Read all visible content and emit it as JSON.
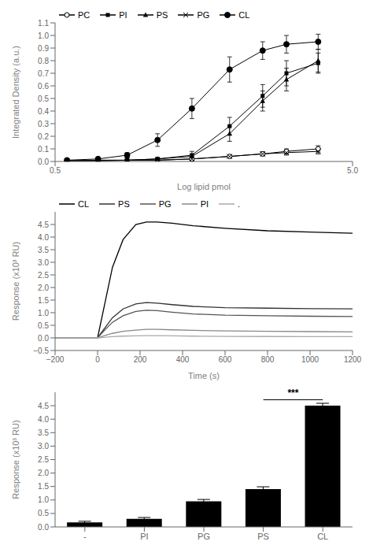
{
  "chart_data": [
    {
      "type": "line",
      "x_label": "Log lipid pmol",
      "y_label": "Integrated Density (a.u.)",
      "xlim": [
        0.5,
        5
      ],
      "xticks": [
        0.5,
        {
          "value": 5,
          "label": "5.0"
        }
      ],
      "ylim": [
        0,
        1.1
      ],
      "yticks": [
        {
          "value": 0,
          "label": "0.0"
        },
        0.1,
        0.2,
        0.3,
        0.4,
        0.5,
        0.6,
        0.7,
        0.8,
        0.9,
        {
          "value": 1,
          "label": "1.0"
        },
        1.1
      ],
      "legend": "upper left",
      "series": [
        {
          "name": "PC",
          "color": "#000000",
          "marker": "circle_open",
          "x": [
            0.68,
            1.15,
            1.59,
            2.05,
            2.57,
            3.14,
            3.64,
            4.0,
            4.48
          ],
          "values": [
            0.005,
            0.005,
            0.01,
            0.01,
            0.02,
            0.04,
            0.06,
            0.08,
            0.1
          ],
          "errors": [
            0.002,
            0.003,
            0.004,
            0.005,
            0.008,
            0.01,
            0.015,
            0.02,
            0.025
          ]
        },
        {
          "name": "PI",
          "color": "#000000",
          "marker": "square",
          "x": [
            0.68,
            1.15,
            1.59,
            2.05,
            2.57,
            3.14,
            3.64,
            4.0,
            4.48
          ],
          "values": [
            0.005,
            0.01,
            0.01,
            0.02,
            0.05,
            0.28,
            0.52,
            0.7,
            0.78
          ],
          "errors": [
            0.003,
            0.005,
            0.005,
            0.01,
            0.03,
            0.07,
            0.09,
            0.1,
            0.08
          ]
        },
        {
          "name": "PS",
          "color": "#000000",
          "marker": "triangle",
          "x": [
            0.68,
            1.15,
            1.59,
            2.05,
            2.57,
            3.14,
            3.64,
            4.0,
            4.48
          ],
          "values": [
            0.005,
            0.01,
            0.01,
            0.02,
            0.04,
            0.22,
            0.48,
            0.65,
            0.8
          ],
          "errors": [
            0.003,
            0.005,
            0.005,
            0.01,
            0.02,
            0.06,
            0.08,
            0.09,
            0.09
          ]
        },
        {
          "name": "PG",
          "color": "#000000",
          "marker": "x",
          "x": [
            0.68,
            1.15,
            1.59,
            2.05,
            2.57,
            3.14,
            3.64,
            4.0,
            4.48
          ],
          "values": [
            0.005,
            0.005,
            0.01,
            0.01,
            0.02,
            0.04,
            0.06,
            0.07,
            0.08
          ],
          "errors": [
            0.002,
            0.003,
            0.004,
            0.005,
            0.008,
            0.01,
            0.015,
            0.02,
            0.02
          ]
        },
        {
          "name": "CL",
          "color": "#000000",
          "marker": "circle",
          "x": [
            0.68,
            1.15,
            1.59,
            2.05,
            2.57,
            3.14,
            3.64,
            4.0,
            4.48
          ],
          "values": [
            0.01,
            0.02,
            0.05,
            0.17,
            0.42,
            0.73,
            0.88,
            0.93,
            0.95
          ],
          "errors": [
            0.005,
            0.01,
            0.02,
            0.05,
            0.08,
            0.1,
            0.07,
            0.07,
            0.06
          ]
        }
      ]
    },
    {
      "type": "line",
      "x_label": "Time (s)",
      "y_label": "Response (x10³ RU)",
      "x": [
        -200,
        -150,
        -100,
        -50,
        -10,
        0,
        30,
        70,
        120,
        180,
        230,
        280,
        350,
        450,
        600,
        800,
        1000,
        1200
      ],
      "xlim": [
        -200,
        1200
      ],
      "xticks": [
        {
          "value": -200,
          "label": "−200"
        },
        0,
        200,
        400,
        600,
        800,
        1000,
        1200
      ],
      "ylim": [
        -0.5,
        5.0
      ],
      "yticks": [
        {
          "value": -0.5,
          "label": "−0.5"
        },
        {
          "value": 0,
          "label": "0.0"
        },
        0.5,
        {
          "value": 1,
          "label": "1.0"
        },
        1.5,
        {
          "value": 2,
          "label": "2.0"
        },
        2.5,
        {
          "value": 3,
          "label": "3.0"
        },
        3.5,
        {
          "value": 4,
          "label": "4.0"
        },
        4.5
      ],
      "legend": "upper left",
      "series": [
        {
          "name": "CL",
          "color": "#000000",
          "values": [
            0.0,
            0.0,
            0.0,
            0.0,
            0.0,
            0.0,
            1.2,
            2.8,
            3.9,
            4.5,
            4.6,
            4.6,
            4.55,
            4.45,
            4.35,
            4.25,
            4.2,
            4.15
          ]
        },
        {
          "name": "PS",
          "color": "#333333",
          "values": [
            0.0,
            0.0,
            0.0,
            0.0,
            0.0,
            0.0,
            0.35,
            0.8,
            1.15,
            1.35,
            1.4,
            1.38,
            1.32,
            1.25,
            1.2,
            1.18,
            1.16,
            1.15
          ]
        },
        {
          "name": "PG",
          "color": "#555555",
          "values": [
            0.0,
            0.0,
            0.0,
            0.0,
            0.0,
            0.0,
            0.28,
            0.62,
            0.88,
            1.05,
            1.1,
            1.08,
            1.02,
            0.95,
            0.9,
            0.88,
            0.86,
            0.85
          ]
        },
        {
          "name": "PI",
          "color": "#888888",
          "values": [
            0.0,
            0.0,
            0.0,
            0.0,
            0.0,
            0.0,
            0.08,
            0.18,
            0.26,
            0.31,
            0.34,
            0.34,
            0.32,
            0.3,
            0.28,
            0.26,
            0.25,
            0.24
          ]
        },
        {
          "name": ".",
          "color": "#aaaaaa",
          "values": [
            0.0,
            0.0,
            0.0,
            0.0,
            0.0,
            0.0,
            0.02,
            0.05,
            0.07,
            0.08,
            0.09,
            0.09,
            0.08,
            0.07,
            0.06,
            0.055,
            0.05,
            0.05
          ]
        }
      ]
    },
    {
      "type": "bar",
      "y_label": "Response (x10³ RU)",
      "categories": [
        "-",
        "PI",
        "PG",
        "PS",
        "CL"
      ],
      "values": [
        0.17,
        0.3,
        0.95,
        1.4,
        4.5
      ],
      "errors": [
        0.04,
        0.05,
        0.07,
        0.09,
        0.09
      ],
      "color": "#000000",
      "ylim": [
        0,
        5.0
      ],
      "yticks": [
        {
          "value": 0,
          "label": "0.0"
        },
        0.5,
        {
          "value": 1,
          "label": "1.0"
        },
        1.5,
        {
          "value": 2,
          "label": "2.0"
        },
        2.5,
        {
          "value": 3,
          "label": "3.0"
        },
        3.5,
        {
          "value": 4,
          "label": "4.0"
        },
        4.5
      ],
      "annotations": [
        {
          "text": "***",
          "x1": "PS",
          "x2": "CL",
          "y": 4.72
        }
      ]
    }
  ]
}
